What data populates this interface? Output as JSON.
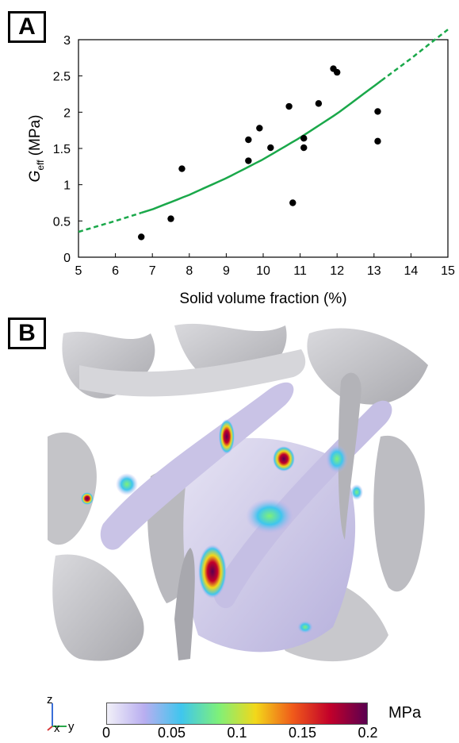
{
  "panels": {
    "a": "A",
    "b": "B"
  },
  "chart_data": {
    "type": "scatter",
    "title": "",
    "xlabel": "Solid volume fraction (%)",
    "ylabel": {
      "main": "G",
      "sub": "eff",
      "unit": " (MPa)"
    },
    "xlim": [
      5,
      15
    ],
    "ylim": [
      0,
      3
    ],
    "xticks": [
      5,
      6,
      7,
      8,
      9,
      10,
      11,
      12,
      13,
      14,
      15
    ],
    "yticks": [
      0,
      0.5,
      1,
      1.5,
      2,
      2.5,
      3
    ],
    "grid": false,
    "points": [
      {
        "x": 6.7,
        "y": 0.28
      },
      {
        "x": 7.5,
        "y": 0.53
      },
      {
        "x": 7.8,
        "y": 1.22
      },
      {
        "x": 9.6,
        "y": 1.62
      },
      {
        "x": 9.6,
        "y": 1.33
      },
      {
        "x": 9.9,
        "y": 1.78
      },
      {
        "x": 10.2,
        "y": 1.51
      },
      {
        "x": 10.7,
        "y": 2.08
      },
      {
        "x": 10.8,
        "y": 0.75
      },
      {
        "x": 11.1,
        "y": 1.64
      },
      {
        "x": 11.1,
        "y": 1.51
      },
      {
        "x": 11.5,
        "y": 2.12
      },
      {
        "x": 11.9,
        "y": 2.6
      },
      {
        "x": 12.0,
        "y": 2.55
      },
      {
        "x": 13.1,
        "y": 2.01
      },
      {
        "x": 13.1,
        "y": 1.6
      }
    ],
    "fit": {
      "color": "#1aa84a",
      "solid_range": [
        6.7,
        13.2
      ],
      "curve": [
        {
          "x": 5,
          "y": 0.35
        },
        {
          "x": 6,
          "y": 0.5
        },
        {
          "x": 7,
          "y": 0.66
        },
        {
          "x": 8,
          "y": 0.86
        },
        {
          "x": 9,
          "y": 1.09
        },
        {
          "x": 10,
          "y": 1.35
        },
        {
          "x": 11,
          "y": 1.65
        },
        {
          "x": 12,
          "y": 1.98
        },
        {
          "x": 13,
          "y": 2.36
        },
        {
          "x": 14,
          "y": 2.74
        },
        {
          "x": 15,
          "y": 3.14
        }
      ]
    },
    "marker_color": "#000000"
  },
  "colorbar": {
    "unit": "MPa",
    "ticks": [
      "0",
      "0.05",
      "0.1",
      "0.15",
      "0.2"
    ],
    "colors": [
      "#f1f0f8",
      "#b9aef0",
      "#3fc6ee",
      "#7ef07a",
      "#f2d81a",
      "#f05a1a",
      "#c2002a",
      "#5a0050"
    ]
  },
  "axes_triad": {
    "z": "z",
    "x": "x",
    "y": "y"
  }
}
